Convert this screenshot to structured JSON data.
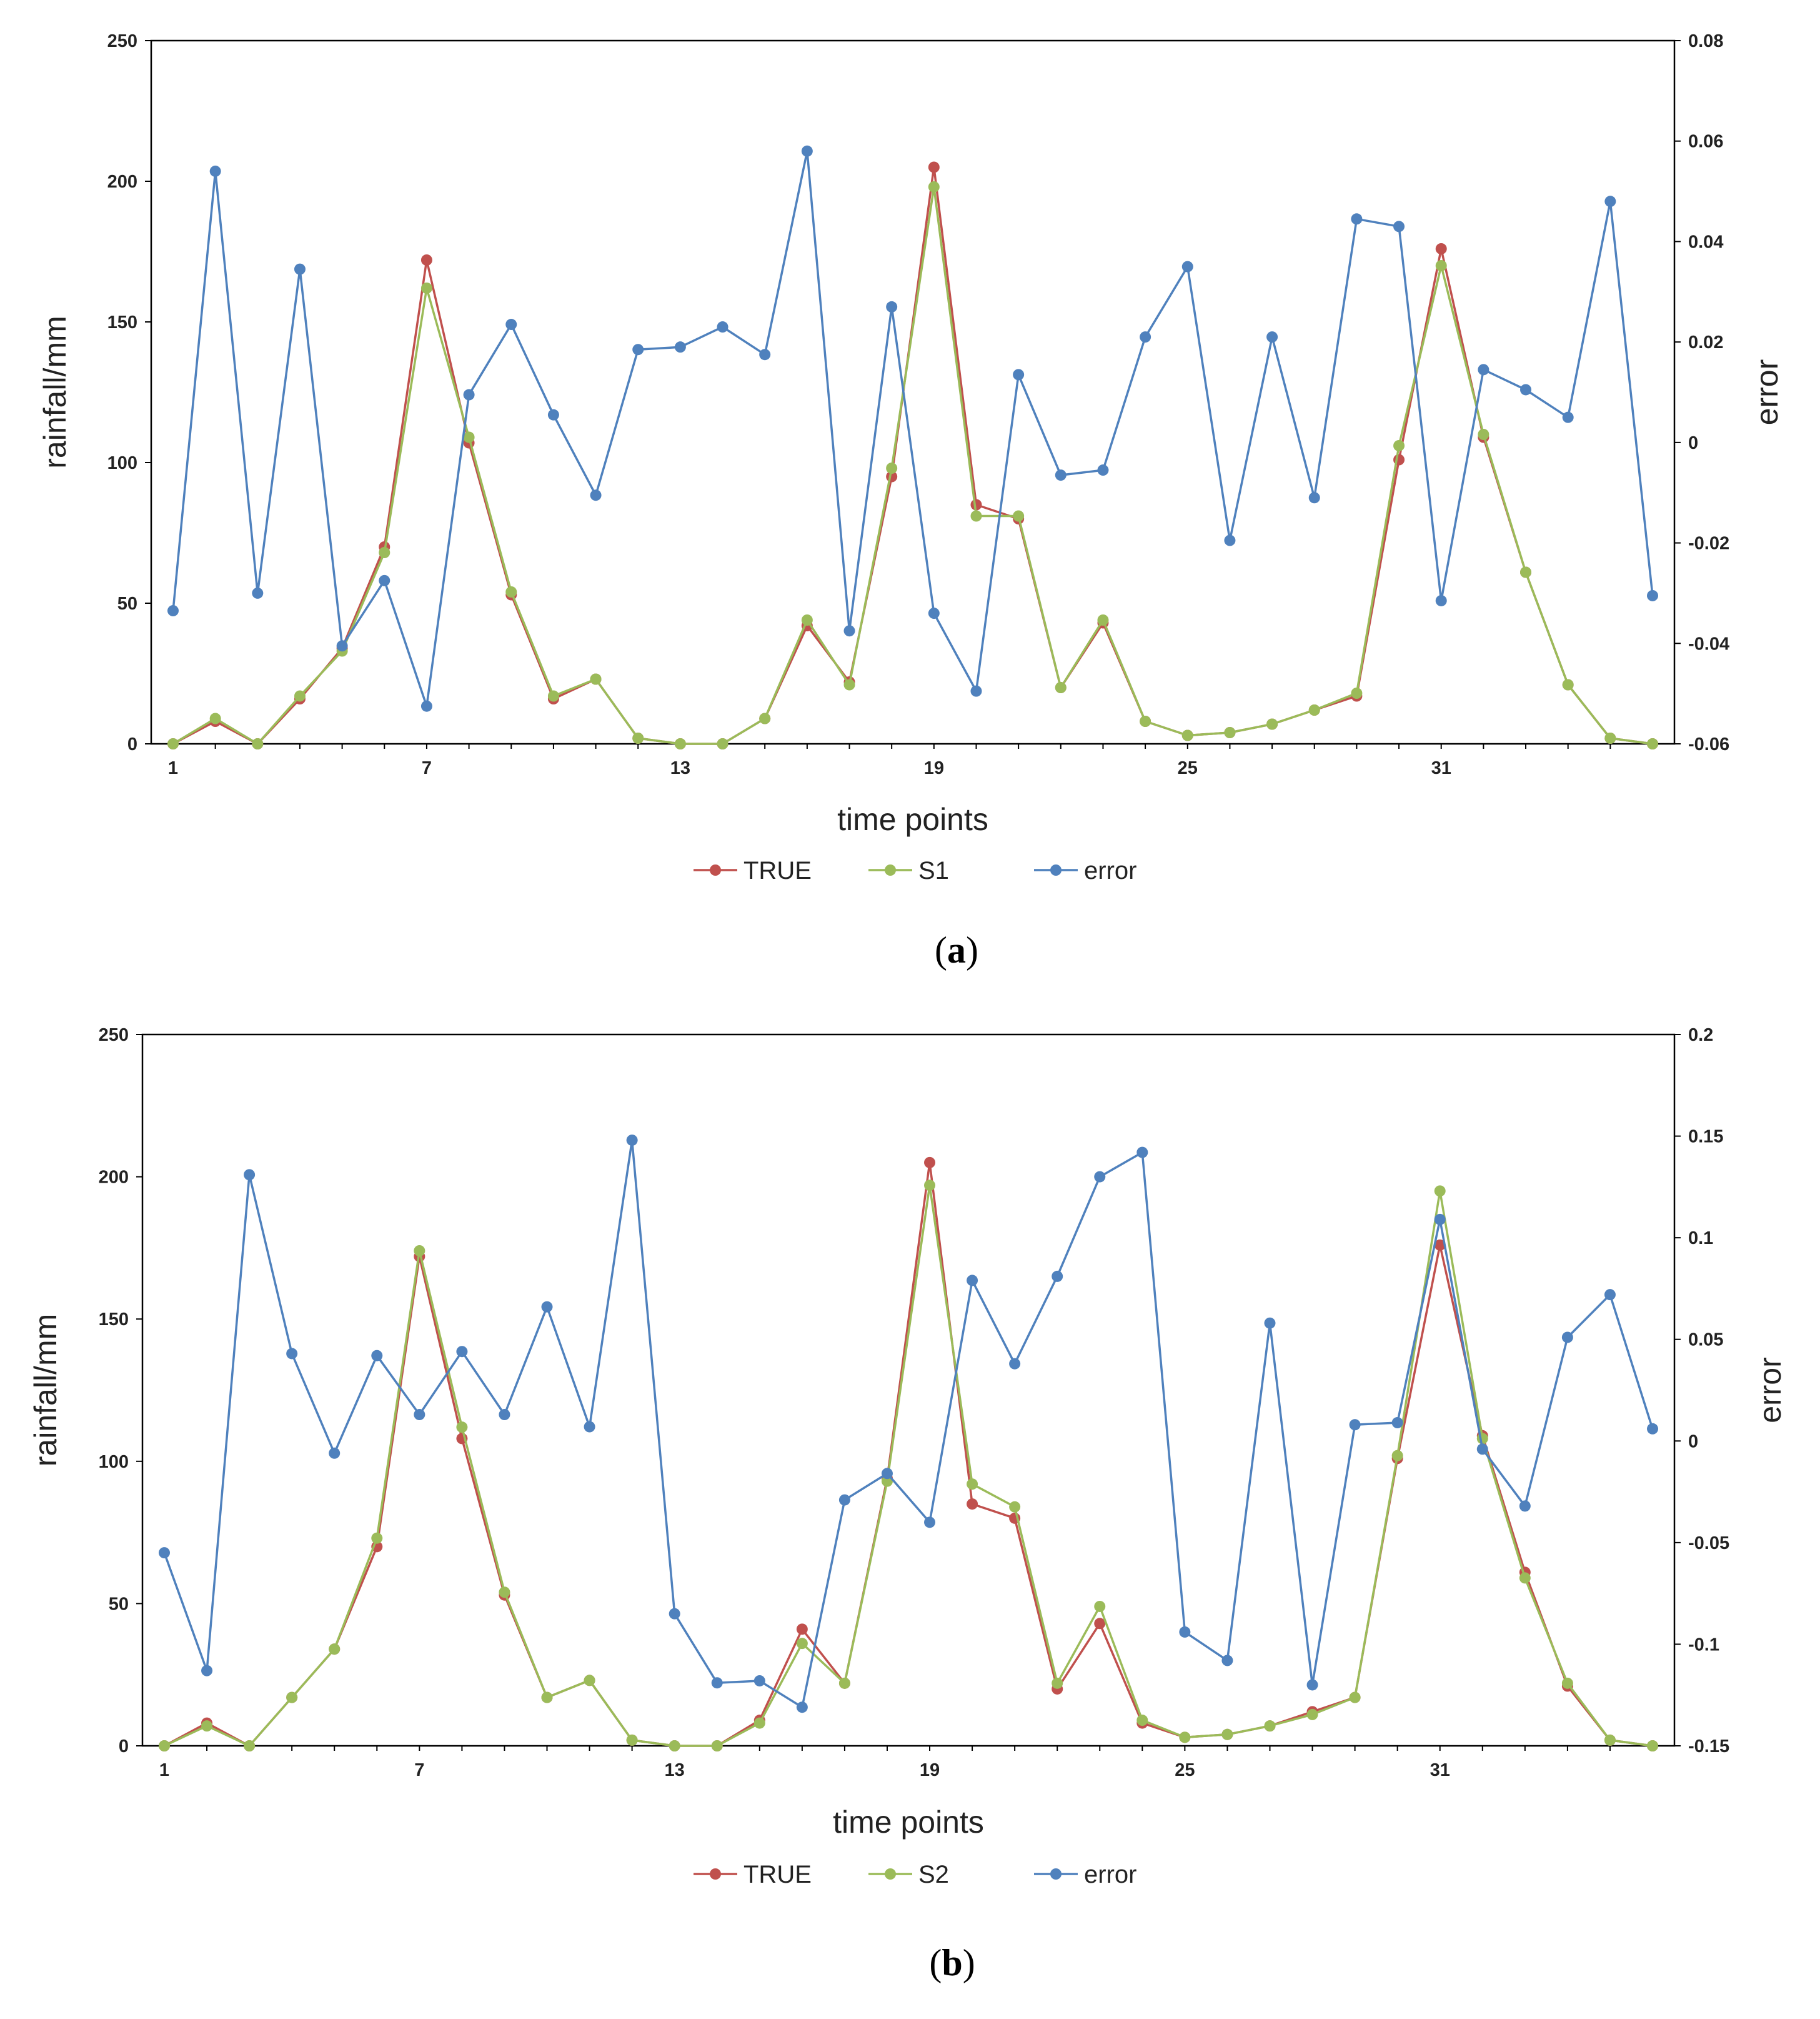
{
  "chart_data": [
    {
      "type": "line",
      "caption": "(a)",
      "xlabel": "time points",
      "ylabel": "rainfall/mm",
      "y2label": "error",
      "x": [
        1,
        2,
        3,
        4,
        5,
        6,
        7,
        8,
        9,
        10,
        11,
        12,
        13,
        14,
        15,
        16,
        17,
        18,
        19,
        20,
        21,
        22,
        23,
        24,
        25,
        26,
        27,
        28,
        29,
        30,
        31,
        32,
        33,
        34,
        35,
        36
      ],
      "xticks": [
        1,
        7,
        13,
        19,
        25,
        31
      ],
      "ylim": [
        0,
        250
      ],
      "yticks": [
        0,
        50,
        100,
        150,
        200,
        250
      ],
      "y2lim": [
        -0.06,
        0.08
      ],
      "y2ticks": [
        -0.06,
        -0.04,
        -0.02,
        0,
        0.02,
        0.04,
        0.06,
        0.08
      ],
      "y2ticklabels": [
        "-0.06",
        "-0.04",
        "-0.02",
        "0",
        "0.02",
        "0.04",
        "0.06",
        "0.08"
      ],
      "series": [
        {
          "name": "TRUE",
          "axis": "left",
          "color": "#c0504d",
          "values": [
            0,
            8,
            0,
            16,
            34,
            70,
            172,
            107,
            53,
            16,
            23,
            2,
            0,
            0,
            9,
            42,
            22,
            95,
            205,
            85,
            80,
            20,
            43,
            8,
            3,
            4,
            7,
            12,
            17,
            101,
            176,
            109,
            61,
            21,
            2,
            0
          ]
        },
        {
          "name": "S1",
          "axis": "left",
          "color": "#9bbb59",
          "values": [
            0,
            9,
            0,
            17,
            33,
            68,
            162,
            109,
            54,
            17,
            23,
            2,
            0,
            0,
            9,
            44,
            21,
            98,
            198,
            81,
            81,
            20,
            44,
            8,
            3,
            4,
            7,
            12,
            18,
            106,
            170,
            110,
            61,
            21,
            2,
            0
          ]
        },
        {
          "name": "error",
          "axis": "right",
          "color": "#4f81bd",
          "values": [
            -0.0335,
            0.054,
            -0.03,
            0.0345,
            -0.0405,
            -0.0275,
            -0.0525,
            0.0095,
            0.0235,
            0.0055,
            -0.0105,
            0.0185,
            0.019,
            0.023,
            0.0175,
            0.058,
            -0.0375,
            0.027,
            -0.034,
            -0.0495,
            0.0135,
            -0.0065,
            -0.0055,
            0.021,
            0.035,
            -0.0195,
            0.021,
            -0.011,
            0.0445,
            0.043,
            -0.0315,
            0.0145,
            0.0105,
            0.005,
            0.048,
            -0.0305
          ]
        }
      ],
      "legend": [
        "TRUE",
        "S1",
        "error"
      ],
      "legend_position": "bottom"
    },
    {
      "type": "line",
      "caption": "(b)",
      "xlabel": "time points",
      "ylabel": "rainfall/mm",
      "y2label": "error",
      "x": [
        1,
        2,
        3,
        4,
        5,
        6,
        7,
        8,
        9,
        10,
        11,
        12,
        13,
        14,
        15,
        16,
        17,
        18,
        19,
        20,
        21,
        22,
        23,
        24,
        25,
        26,
        27,
        28,
        29,
        30,
        31,
        32,
        33,
        34,
        35,
        36
      ],
      "xticks": [
        1,
        7,
        13,
        19,
        25,
        31
      ],
      "ylim": [
        0,
        250
      ],
      "yticks": [
        0,
        50,
        100,
        150,
        200,
        250
      ],
      "y2lim": [
        -0.15,
        0.2
      ],
      "y2ticks": [
        -0.15,
        -0.1,
        -0.05,
        0,
        0.05,
        0.1,
        0.15,
        0.2
      ],
      "y2ticklabels": [
        "-0.15",
        "-0.1",
        "-0.05",
        "0",
        "0.05",
        "0.1",
        "0.15",
        "0.2"
      ],
      "series": [
        {
          "name": "TRUE",
          "axis": "left",
          "color": "#c0504d",
          "values": [
            0,
            8,
            0,
            17,
            34,
            70,
            172,
            108,
            53,
            17,
            23,
            2,
            0,
            0,
            9,
            41,
            22,
            94,
            205,
            85,
            80,
            20,
            43,
            8,
            3,
            4,
            7,
            12,
            17,
            101,
            176,
            109,
            61,
            21,
            2,
            0
          ]
        },
        {
          "name": "S2",
          "axis": "left",
          "color": "#9bbb59",
          "values": [
            0,
            7,
            0,
            17,
            34,
            73,
            174,
            112,
            54,
            17,
            23,
            2,
            0,
            0,
            8,
            36,
            22,
            93,
            197,
            92,
            84,
            22,
            49,
            9,
            3,
            4,
            7,
            11,
            17,
            102,
            195,
            108,
            59,
            22,
            2,
            0
          ]
        },
        {
          "name": "error",
          "axis": "right",
          "color": "#4f81bd",
          "values": [
            -0.055,
            -0.113,
            0.131,
            0.043,
            -0.006,
            0.042,
            0.013,
            0.044,
            0.013,
            0.066,
            0.007,
            0.148,
            -0.085,
            -0.119,
            -0.118,
            -0.131,
            -0.029,
            -0.016,
            -0.04,
            0.079,
            0.038,
            0.081,
            0.13,
            0.142,
            -0.094,
            -0.108,
            0.058,
            -0.12,
            0.008,
            0.009,
            0.109,
            -0.004,
            -0.032,
            0.051,
            0.072,
            0.006
          ]
        }
      ],
      "legend": [
        "TRUE",
        "S2",
        "error"
      ],
      "legend_position": "bottom"
    }
  ]
}
